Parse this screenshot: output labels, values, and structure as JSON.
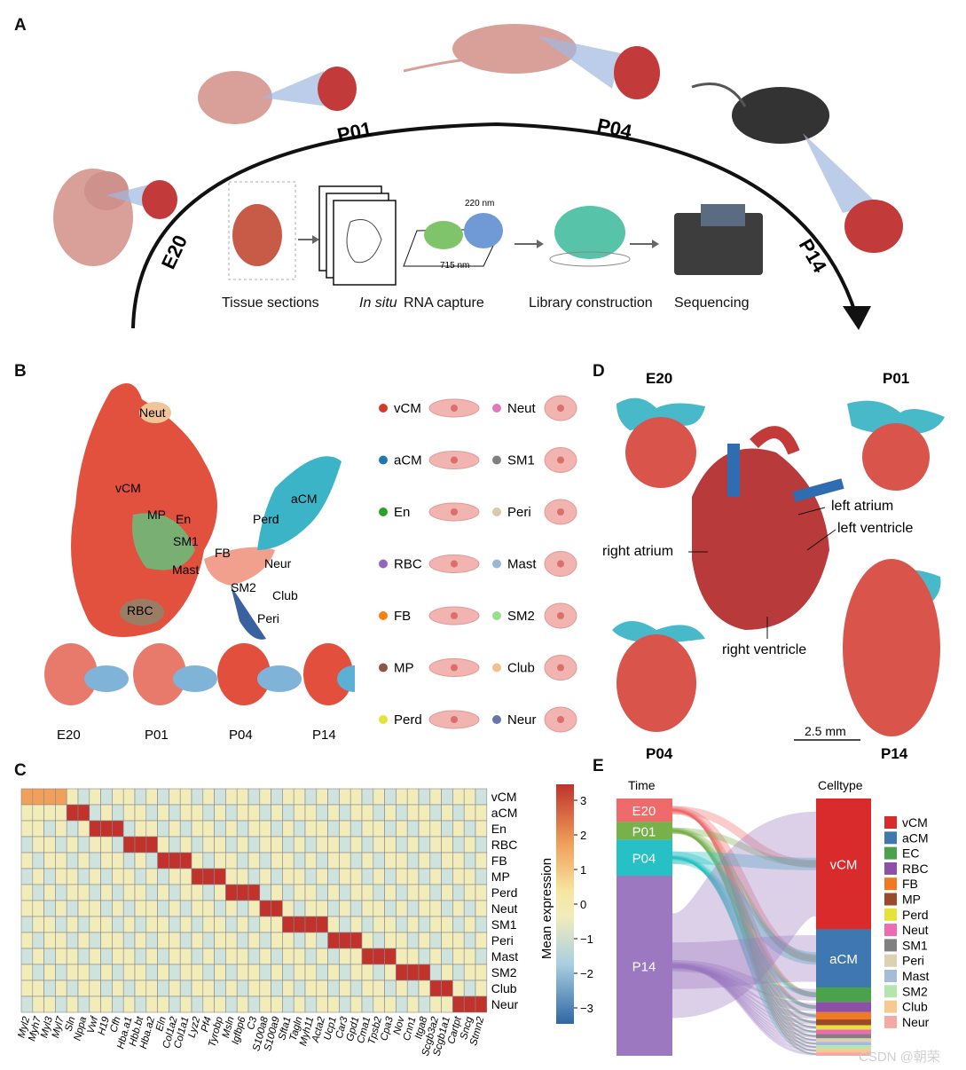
{
  "panels": {
    "A": "A",
    "B": "B",
    "C": "C",
    "D": "D",
    "E": "E"
  },
  "panelA": {
    "timepoints": [
      "E20",
      "P01",
      "P04",
      "P14"
    ],
    "steps": [
      "Tissue sections",
      "In situ",
      "RNA capture",
      "Library construction",
      "Sequencing"
    ],
    "dims": {
      "small": "220 nm",
      "large": "715 nm"
    }
  },
  "panelB": {
    "umap_labels": [
      "Neut",
      "vCM",
      "MP",
      "En",
      "SM1",
      "Mast",
      "FB",
      "RBC",
      "SM2",
      "Club",
      "Peri",
      "Neur",
      "Perd",
      "aCM"
    ],
    "timepoints": [
      "E20",
      "P01",
      "P04",
      "P14"
    ],
    "legend": [
      {
        "name": "vCM",
        "color": "#d33a2c"
      },
      {
        "name": "Neut",
        "color": "#e377c2"
      },
      {
        "name": "aCM",
        "color": "#1f77b4"
      },
      {
        "name": "SM1",
        "color": "#7f7f7f"
      },
      {
        "name": "En",
        "color": "#2ca02c"
      },
      {
        "name": "Peri",
        "color": "#d8c9a9"
      },
      {
        "name": "RBC",
        "color": "#9467bd"
      },
      {
        "name": "Mast",
        "color": "#9ab7d6"
      },
      {
        "name": "FB",
        "color": "#ff7f0e"
      },
      {
        "name": "SM2",
        "color": "#98df8a"
      },
      {
        "name": "MP",
        "color": "#8c564b"
      },
      {
        "name": "Club",
        "color": "#f5c089"
      },
      {
        "name": "Perd",
        "color": "#e8e33a"
      },
      {
        "name": "Neur",
        "color": "#6677a8"
      }
    ]
  },
  "panelC": {
    "rows": [
      "vCM",
      "aCM",
      "En",
      "RBC",
      "FB",
      "MP",
      "Perd",
      "Neut",
      "SM1",
      "Peri",
      "Mast",
      "SM2",
      "Club",
      "Neur"
    ],
    "genes": [
      "Myl2",
      "Myh7",
      "Myl3",
      "Myl7",
      "Sln",
      "Nppa",
      "Vwf",
      "H19",
      "Cfh",
      "Hba.a1",
      "Hbb.bt",
      "Hba.a2",
      "Eln",
      "Col1a2",
      "Col1a1",
      "Lyz2",
      "Pf4",
      "Tyrobp",
      "Msln",
      "Igfbp6",
      "C3",
      "S100a8",
      "S100a9",
      "Sfta1",
      "Tagln",
      "Myh11",
      "Acta2",
      "Ucp1",
      "Car3",
      "Gpd1",
      "Cma1",
      "Tpsb2",
      "Cpa3",
      "Nov",
      "Cnn1",
      "Itga8",
      "Scgb3a2",
      "Scgb1a1",
      "Cartpt",
      "Sncg",
      "Stmn2"
    ],
    "colorbar_label": "Mean expression",
    "colorbar_ticks": [
      "3",
      "2",
      "1",
      "0",
      "−1",
      "−2",
      "−3"
    ]
  },
  "panelD": {
    "timepoints": [
      "E20",
      "P01",
      "P04",
      "P14"
    ],
    "heart_labels": {
      "la": "left atrium",
      "lv": "left ventricle",
      "ra": "right atrium",
      "rv": "right ventricle"
    },
    "scale": "2.5 mm"
  },
  "panelE": {
    "left_title": "Time",
    "right_title": "Celltype",
    "time": [
      {
        "name": "E20",
        "color": "#ef6a6a",
        "weight": 0.09
      },
      {
        "name": "P01",
        "color": "#78b04a",
        "weight": 0.07
      },
      {
        "name": "P04",
        "color": "#27c0c4",
        "weight": 0.14
      },
      {
        "name": "P14",
        "color": "#9b78bf",
        "weight": 0.7
      }
    ],
    "celltypes": [
      {
        "name": "vCM",
        "color": "#d92b2b",
        "weight": 0.45
      },
      {
        "name": "aCM",
        "color": "#3f78b0",
        "weight": 0.2
      },
      {
        "name": "EC",
        "color": "#4aa34a",
        "weight": 0.05
      },
      {
        "name": "RBC",
        "color": "#8e4fa6",
        "weight": 0.035
      },
      {
        "name": "FB",
        "color": "#ef7a1f",
        "weight": 0.025
      },
      {
        "name": "MP",
        "color": "#9a4a2a",
        "weight": 0.02
      },
      {
        "name": "Perd",
        "color": "#e6e23c",
        "weight": 0.015
      },
      {
        "name": "Neut",
        "color": "#ee6ab3",
        "weight": 0.015
      },
      {
        "name": "SM1",
        "color": "#808080",
        "weight": 0.015
      },
      {
        "name": "Peri",
        "color": "#ddd0b3",
        "weight": 0.012
      },
      {
        "name": "Mast",
        "color": "#a3bcd8",
        "weight": 0.012
      },
      {
        "name": "SM2",
        "color": "#b6e3b0",
        "weight": 0.012
      },
      {
        "name": "Club",
        "color": "#f7c88f",
        "weight": 0.012
      },
      {
        "name": "Neur",
        "color": "#f3a9a5",
        "weight": 0.012
      }
    ]
  },
  "watermark": "CSDN @朝荣"
}
